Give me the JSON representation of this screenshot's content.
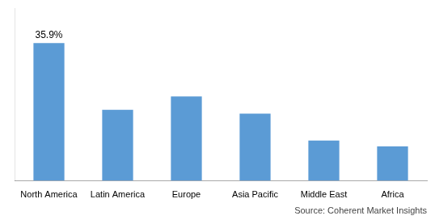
{
  "chart_data": {
    "type": "bar",
    "categories": [
      "North America",
      "Latin America",
      "Europe",
      "Asia Pacific",
      "Middle East",
      "Africa"
    ],
    "values": [
      35.9,
      18.5,
      22.0,
      17.5,
      10.5,
      9.0
    ],
    "color": "#5b9bd5",
    "ylim": [
      0,
      45
    ],
    "grid": false,
    "tick_labels": "x",
    "annotations": [
      {
        "text": "35.9%",
        "category": "North America",
        "value": 35.9
      }
    ],
    "source": "Source: Coherent Market Insights"
  }
}
